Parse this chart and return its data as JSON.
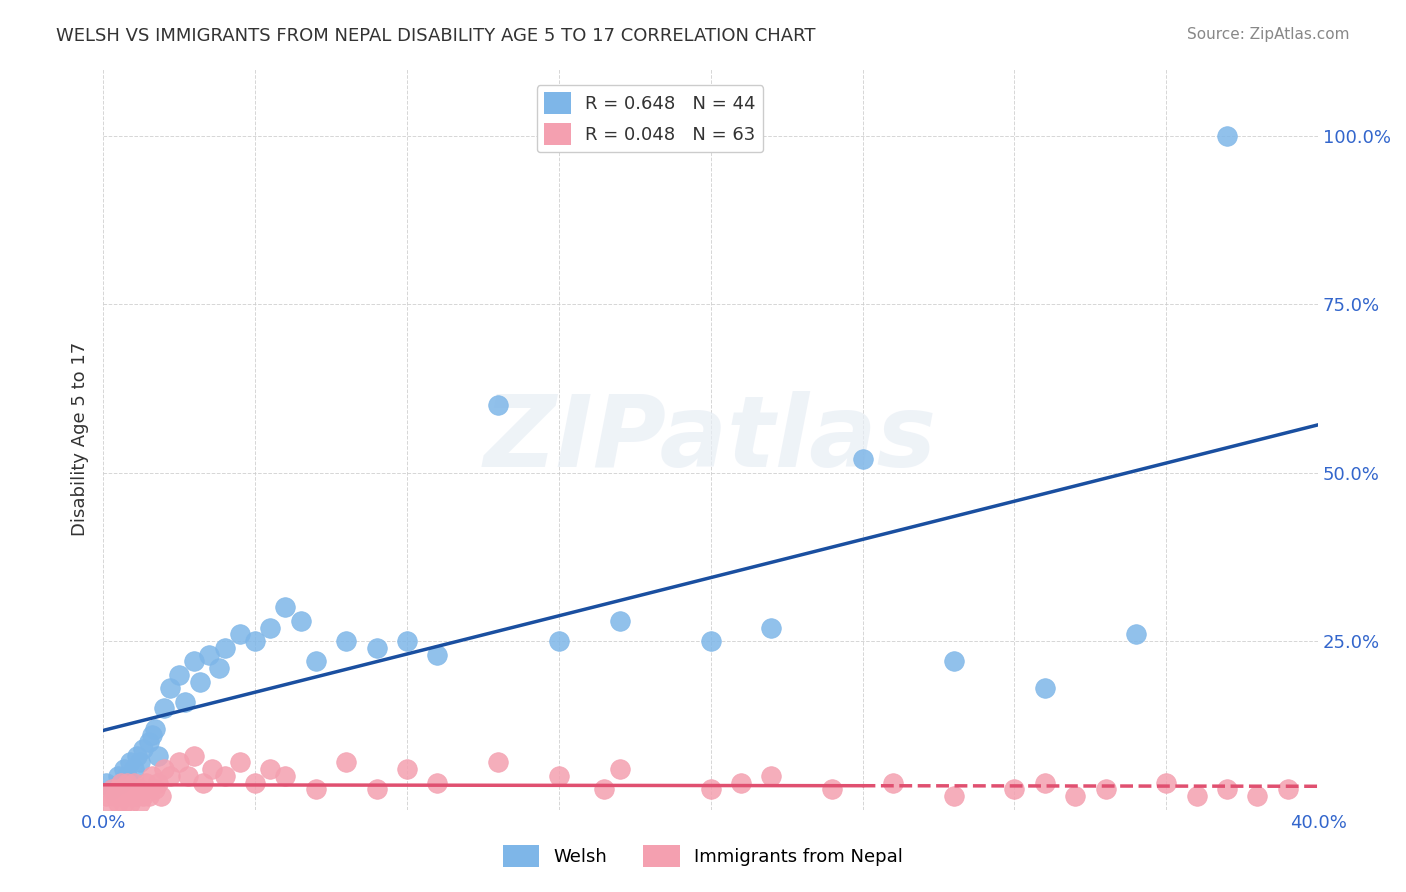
{
  "title": "WELSH VS IMMIGRANTS FROM NEPAL DISABILITY AGE 5 TO 17 CORRELATION CHART",
  "source": "Source: ZipAtlas.com",
  "xlabel": "",
  "ylabel": "Disability Age 5 to 17",
  "xlim": [
    0.0,
    0.4
  ],
  "ylim": [
    0.0,
    1.1
  ],
  "xticks": [
    0.0,
    0.05,
    0.1,
    0.15,
    0.2,
    0.25,
    0.3,
    0.35,
    0.4
  ],
  "xticklabels": [
    "0.0%",
    "",
    "",
    "",
    "",
    "",
    "",
    "",
    "40.0%"
  ],
  "yticks": [
    0.0,
    0.25,
    0.5,
    0.75,
    1.0
  ],
  "yticklabels": [
    "",
    "25.0%",
    "50.0%",
    "75.0%",
    "100.0%"
  ],
  "welsh_R": 0.648,
  "welsh_N": 44,
  "nepal_R": 0.048,
  "nepal_N": 63,
  "legend_labels": [
    "Welsh",
    "Immigrants from Nepal"
  ],
  "welsh_color": "#7EB6E8",
  "nepal_color": "#F4A0B0",
  "welsh_line_color": "#1A4FA0",
  "nepal_line_color": "#E05070",
  "background_color": "#FFFFFF",
  "grid_color": "#CCCCCC",
  "watermark": "ZIPatlas",
  "welsh_x": [
    0.001,
    0.003,
    0.005,
    0.006,
    0.007,
    0.008,
    0.009,
    0.01,
    0.011,
    0.012,
    0.013,
    0.015,
    0.016,
    0.017,
    0.018,
    0.02,
    0.022,
    0.025,
    0.027,
    0.03,
    0.032,
    0.035,
    0.038,
    0.04,
    0.045,
    0.05,
    0.055,
    0.06,
    0.065,
    0.07,
    0.08,
    0.09,
    0.1,
    0.11,
    0.13,
    0.15,
    0.17,
    0.2,
    0.22,
    0.25,
    0.28,
    0.31,
    0.34,
    0.37
  ],
  "welsh_y": [
    0.04,
    0.03,
    0.05,
    0.04,
    0.06,
    0.05,
    0.07,
    0.06,
    0.08,
    0.07,
    0.09,
    0.1,
    0.11,
    0.12,
    0.08,
    0.15,
    0.18,
    0.2,
    0.16,
    0.22,
    0.19,
    0.23,
    0.21,
    0.24,
    0.26,
    0.25,
    0.27,
    0.3,
    0.28,
    0.22,
    0.25,
    0.24,
    0.25,
    0.23,
    0.6,
    0.25,
    0.28,
    0.25,
    0.27,
    0.52,
    0.22,
    0.18,
    0.26,
    1.0
  ],
  "nepal_x": [
    0.001,
    0.002,
    0.003,
    0.004,
    0.005,
    0.005,
    0.006,
    0.006,
    0.007,
    0.007,
    0.008,
    0.008,
    0.009,
    0.009,
    0.01,
    0.01,
    0.011,
    0.011,
    0.012,
    0.012,
    0.013,
    0.014,
    0.015,
    0.016,
    0.017,
    0.018,
    0.019,
    0.02,
    0.022,
    0.025,
    0.028,
    0.03,
    0.033,
    0.036,
    0.04,
    0.045,
    0.05,
    0.055,
    0.06,
    0.07,
    0.08,
    0.09,
    0.1,
    0.11,
    0.13,
    0.15,
    0.165,
    0.17,
    0.2,
    0.21,
    0.22,
    0.24,
    0.26,
    0.28,
    0.3,
    0.31,
    0.32,
    0.33,
    0.35,
    0.36,
    0.37,
    0.38,
    0.39
  ],
  "nepal_y": [
    0.02,
    0.01,
    0.03,
    0.02,
    0.01,
    0.03,
    0.02,
    0.04,
    0.01,
    0.03,
    0.02,
    0.04,
    0.01,
    0.03,
    0.02,
    0.04,
    0.02,
    0.03,
    0.01,
    0.03,
    0.02,
    0.04,
    0.02,
    0.05,
    0.03,
    0.04,
    0.02,
    0.06,
    0.05,
    0.07,
    0.05,
    0.08,
    0.04,
    0.06,
    0.05,
    0.07,
    0.04,
    0.06,
    0.05,
    0.03,
    0.07,
    0.03,
    0.06,
    0.04,
    0.07,
    0.05,
    0.03,
    0.06,
    0.03,
    0.04,
    0.05,
    0.03,
    0.04,
    0.02,
    0.03,
    0.04,
    0.02,
    0.03,
    0.04,
    0.02,
    0.03,
    0.02,
    0.03
  ]
}
